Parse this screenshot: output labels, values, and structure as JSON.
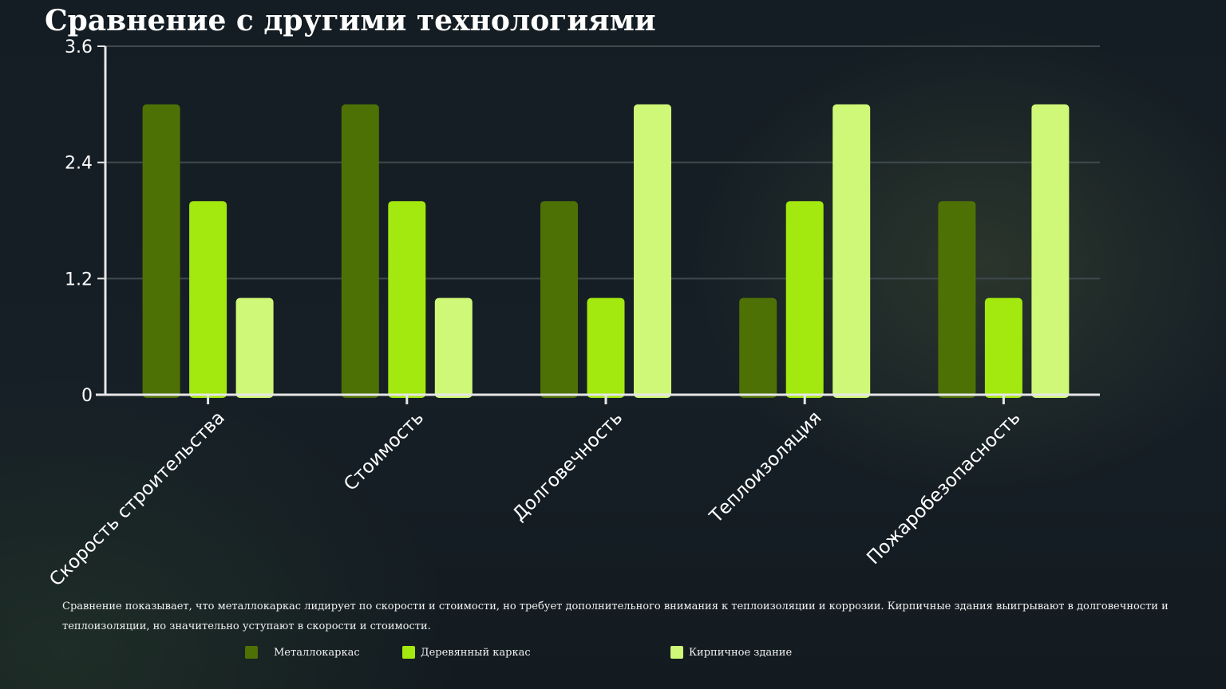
{
  "title": "Сравнение с другими технологиями",
  "description": "Сравнение показывает, что металлокаркас лидирует по скорости и стоимости, но требует дополнительного внимания к теплоизоляции и коррозии. Кирпичные здания выигрывают в долговечности и теплоизоляции, но значительно уступают в скорости и стоимости.",
  "colors": {
    "background": "#161f26",
    "grid": "#3f4a4f",
    "axis": "#e6e6e6"
  },
  "chart_data": {
    "type": "bar",
    "categories": [
      "Скорость строительства",
      "Стоимость",
      "Долговечность",
      "Теплоизоляция",
      "Пожаробезопасность"
    ],
    "series": [
      {
        "name": "Металлокаркас",
        "color": "#4e7105",
        "values": [
          3,
          3,
          2,
          1,
          2
        ]
      },
      {
        "name": "Деревянный каркас",
        "color": "#a3e80f",
        "values": [
          2,
          2,
          1,
          2,
          1
        ]
      },
      {
        "name": "Кирпичное здание",
        "color": "#d0f878",
        "values": [
          1,
          1,
          3,
          3,
          3
        ]
      }
    ],
    "yticks": [
      "0",
      "1.2",
      "2.4",
      "3.6"
    ],
    "ylim": [
      0,
      3.6
    ],
    "grid": true,
    "legend": "bottom"
  }
}
